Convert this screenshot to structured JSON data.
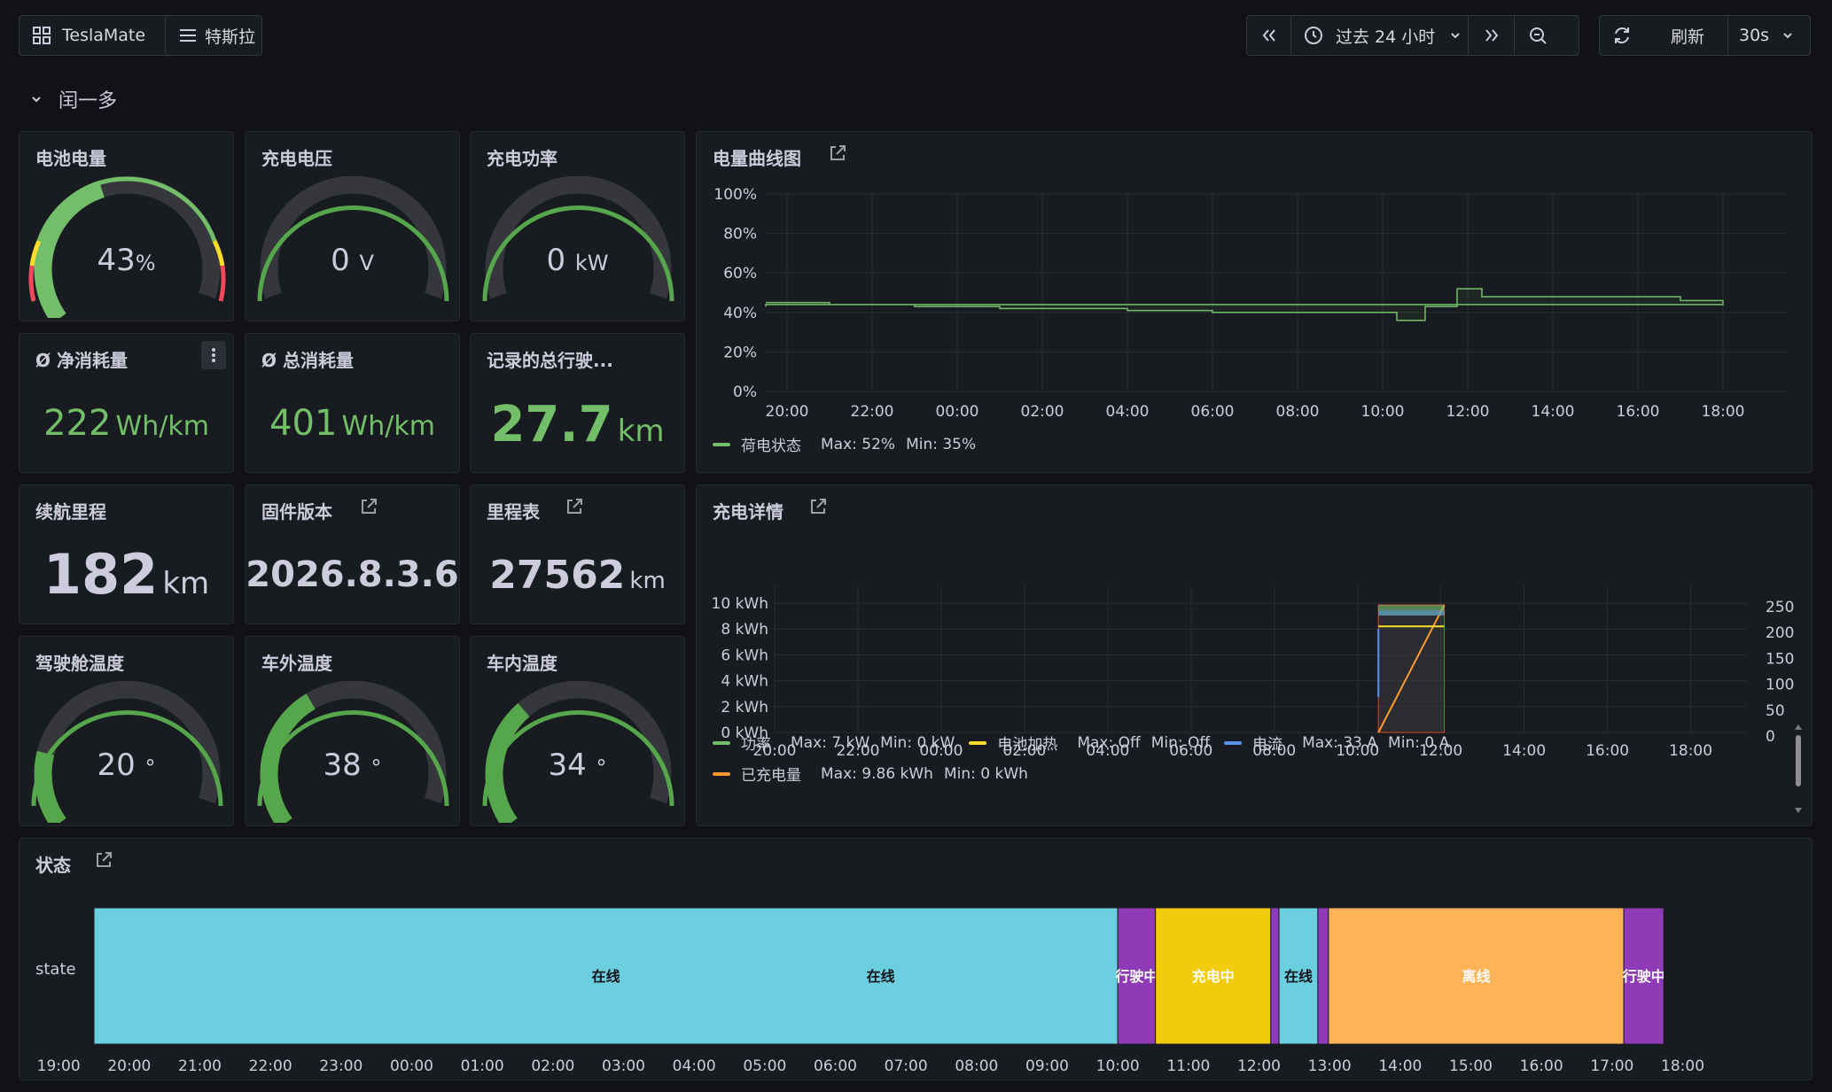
{
  "toolbar": {
    "home_label": "TeslaMate",
    "menu_label": "特斯拉",
    "time_range": "过去 24 小时",
    "refresh_label": "刷新",
    "refresh_interval": "30s"
  },
  "row": {
    "title": "闰一多"
  },
  "panels": {
    "battery": {
      "title": "电池电量",
      "value": "43",
      "unit": "%",
      "level": 0.43
    },
    "voltage": {
      "title": "充电电压",
      "value": "0",
      "unit": "V"
    },
    "power": {
      "title": "充电功率",
      "value": "0",
      "unit": "kW"
    },
    "net_consumption": {
      "title": "Ø 净消耗量",
      "value": "222",
      "unit": "Wh/km"
    },
    "total_consumption": {
      "title": "Ø 总消耗量",
      "value": "401",
      "unit": "Wh/km"
    },
    "total_distance": {
      "title": "记录的总行驶...",
      "value": "27.7",
      "unit": "km"
    },
    "range": {
      "title": "续航里程",
      "value": "182",
      "unit": "km"
    },
    "firmware": {
      "title": "固件版本",
      "value": "2026.8.3.6"
    },
    "odometer": {
      "title": "里程表",
      "value": "27562",
      "unit": "km"
    },
    "cabin_temp": {
      "title": "驾驶舱温度",
      "value": "20",
      "unit": "°",
      "level": 0.2
    },
    "outside_temp": {
      "title": "车外温度",
      "value": "38",
      "unit": "°",
      "level": 0.38
    },
    "inside_temp": {
      "title": "车内温度",
      "value": "34",
      "unit": "°",
      "level": 0.34
    },
    "battery_chart": {
      "title": "电量曲线图"
    },
    "charging_chart": {
      "title": "充电详情"
    },
    "state": {
      "title": "状态",
      "row_label": "state"
    }
  },
  "battery_legend": {
    "name": "荷电状态",
    "max": "Max: 52%",
    "min": "Min: 35%"
  },
  "charging_legend": [
    {
      "name": "功率",
      "max": "Max: 7 kW",
      "min": "Min: 0 kW",
      "color": "#73bf69"
    },
    {
      "name": "电池加热",
      "max": "Max: Off",
      "min": "Min: Off",
      "color": "#fade2a"
    },
    {
      "name": "电流",
      "max": "Max: 33 A",
      "min": "Min: 0 A",
      "color": "#5794f2"
    },
    {
      "name": "已充电量",
      "max": "Max: 9.86 kWh",
      "min": "Min: 0 kWh",
      "color": "#ff9830"
    }
  ],
  "chart_data": [
    {
      "type": "line",
      "title": "电量曲线图",
      "x": [
        "19:30",
        "20:00",
        "21:00",
        "22:00",
        "23:00",
        "00:00",
        "01:00",
        "02:00",
        "03:00",
        "04:00",
        "05:00",
        "06:00",
        "07:00",
        "08:00",
        "09:00",
        "09:50",
        "10:20",
        "11:00",
        "11:45",
        "12:20",
        "13:00",
        "14:00",
        "15:00",
        "16:00",
        "17:00",
        "18:00",
        "19:30"
      ],
      "x_ticks": [
        "20:00",
        "22:00",
        "00:00",
        "02:00",
        "04:00",
        "06:00",
        "08:00",
        "10:00",
        "12:00",
        "14:00",
        "16:00",
        "18:00"
      ],
      "y_ticks": [
        "100%",
        "80%",
        "60%",
        "40%",
        "20%",
        "0%"
      ],
      "ylim": [
        0,
        100
      ],
      "series": [
        {
          "name": "荷电状态",
          "color": "#73bf69",
          "values": [
            45,
            45,
            44,
            44,
            43,
            43,
            42,
            42,
            42,
            41,
            41,
            40,
            40,
            40,
            40,
            40,
            36,
            43,
            52,
            48,
            48,
            48,
            48,
            48,
            46,
            44,
            43
          ]
        }
      ]
    },
    {
      "type": "line",
      "title": "充电详情",
      "x_ticks": [
        "20:00",
        "22:00",
        "00:00",
        "02:00",
        "04:00",
        "06:00",
        "08:00",
        "10:00",
        "12:00",
        "14:00",
        "16:00",
        "18:00"
      ],
      "y_ticks": [
        "10 kWh",
        "8 kWh",
        "6 kWh",
        "4 kWh",
        "2 kWh",
        "0 kWh"
      ],
      "y2_ticks": [
        "250",
        "200",
        "150",
        "100",
        "50",
        "0"
      ],
      "ylim": [
        0,
        10
      ],
      "y2lim": [
        0,
        250
      ],
      "charge_window": [
        "10:30",
        "12:05"
      ],
      "series": [
        {
          "name": "已充电量",
          "color": "#ff9830",
          "x": [
            "10:30",
            "12:05"
          ],
          "values": [
            0,
            9.86
          ]
        },
        {
          "name": "功率",
          "color": "#73bf69",
          "x": [
            "10:30",
            "12:05"
          ],
          "values": [
            7,
            7
          ]
        },
        {
          "name": "电流",
          "color": "#5794f2",
          "x": [
            "10:30",
            "12:05"
          ],
          "values": [
            33,
            33
          ]
        },
        {
          "name": "电池加热",
          "color": "#fade2a",
          "x": [
            "10:30",
            "12:05"
          ],
          "values": [
            0,
            0
          ]
        }
      ]
    },
    {
      "type": "table",
      "title": "状态",
      "x_ticks": [
        "20:00",
        "21:00",
        "22:00",
        "23:00",
        "00:00",
        "01:00",
        "02:00",
        "03:00",
        "04:00",
        "05:00",
        "06:00",
        "07:00",
        "08:00",
        "09:00",
        "10:00",
        "11:00",
        "12:00",
        "13:00",
        "14:00",
        "15:00",
        "16:00",
        "17:00",
        "18:00",
        "19:00"
      ],
      "segments": [
        {
          "label": "在线",
          "start": "19:30",
          "end": "10:00",
          "color": "#6ccfe0"
        },
        {
          "label": "行驶中",
          "start": "10:00",
          "end": "10:32",
          "color": "#8f3bb8"
        },
        {
          "label": "充电中",
          "start": "10:32",
          "end": "12:10",
          "color": "#f2cc0c"
        },
        {
          "label": "",
          "start": "12:10",
          "end": "12:17",
          "color": "#8f3bb8"
        },
        {
          "label": "在线",
          "start": "12:17",
          "end": "12:50",
          "color": "#6ccfe0"
        },
        {
          "label": "",
          "start": "12:50",
          "end": "12:59",
          "color": "#8f3bb8"
        },
        {
          "label": "离线",
          "start": "12:59",
          "end": "17:10",
          "color": "#ffb357"
        },
        {
          "label": "行驶中",
          "start": "17:10",
          "end": "17:44",
          "color": "#8f3bb8"
        },
        {
          "label": "在线",
          "start": "17:44",
          "end": "19:33",
          "color": "#6ccfe0"
        }
      ]
    }
  ]
}
